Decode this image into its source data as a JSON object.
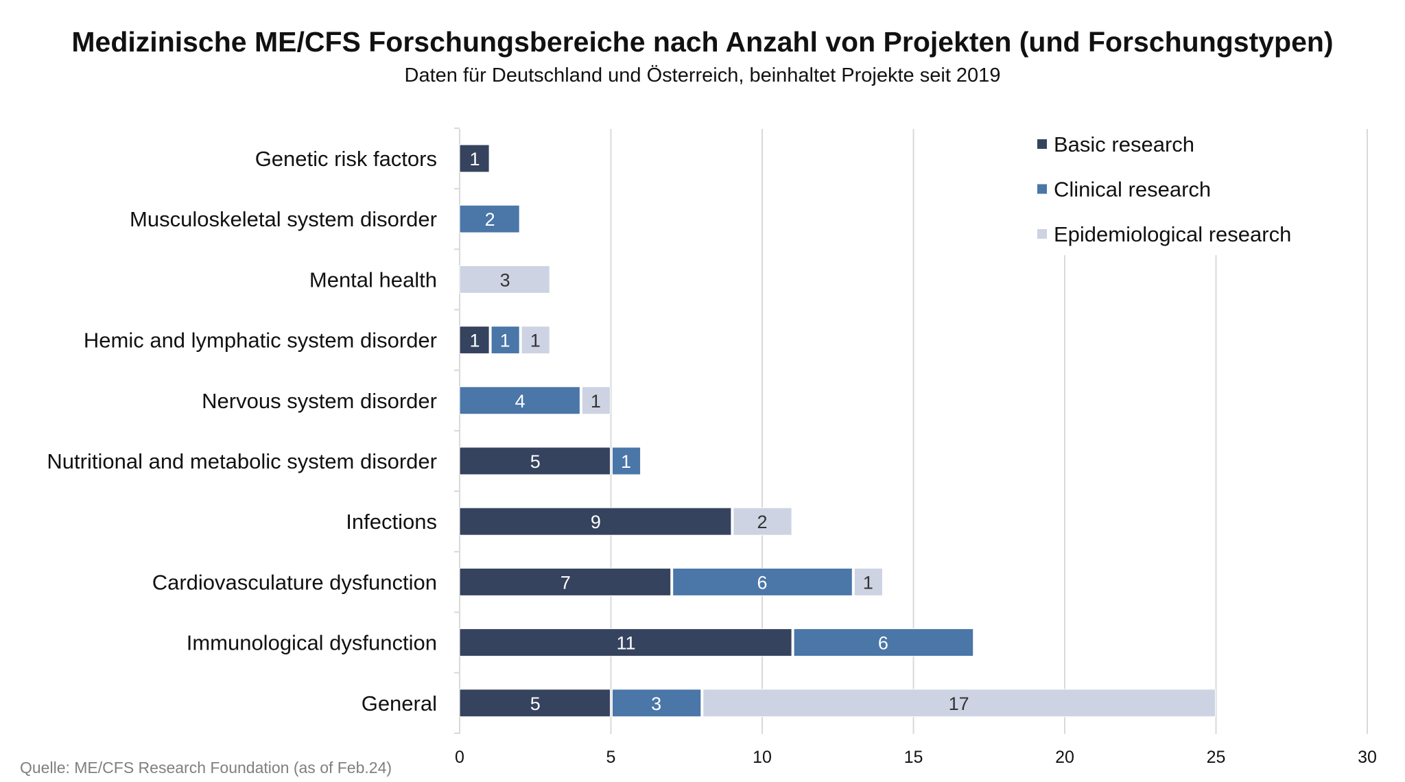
{
  "chart_data": {
    "type": "bar",
    "orientation": "horizontal",
    "stacked": true,
    "title": "Medizinische ME/CFS Forschungsbereiche nach Anzahl von Projekten (und Forschungstypen)",
    "subtitle": "Daten für Deutschland und Österreich, beinhaltet Projekte seit 2019",
    "source": "Quelle: ME/CFS Research Foundation (as of Feb.24)",
    "categories": [
      "Genetic risk factors",
      "Musculoskeletal system disorder",
      "Mental health",
      "Hemic and lymphatic system disorder",
      "Nervous system disorder",
      "Nutritional and metabolic system disorder",
      "Infections",
      "Cardiovasculature dysfunction",
      "Immunological dysfunction",
      "General"
    ],
    "series": [
      {
        "name": "Basic research",
        "color": "#36435e",
        "label_color": "#ffffff",
        "values": [
          1,
          0,
          0,
          1,
          0,
          5,
          9,
          7,
          11,
          5
        ]
      },
      {
        "name": "Clinical research",
        "color": "#4a76a8",
        "label_color": "#ffffff",
        "values": [
          0,
          2,
          0,
          1,
          4,
          1,
          0,
          6,
          6,
          3
        ]
      },
      {
        "name": "Epidemiological research",
        "color": "#cdd3e3",
        "label_color": "#333333",
        "values": [
          0,
          0,
          3,
          1,
          1,
          0,
          2,
          1,
          0,
          17
        ]
      }
    ],
    "xlim": [
      0,
      30
    ],
    "xticks": [
      0,
      5,
      10,
      15,
      20,
      25,
      30
    ],
    "grid": true,
    "legend_position": "top-right",
    "data_labels": true
  }
}
